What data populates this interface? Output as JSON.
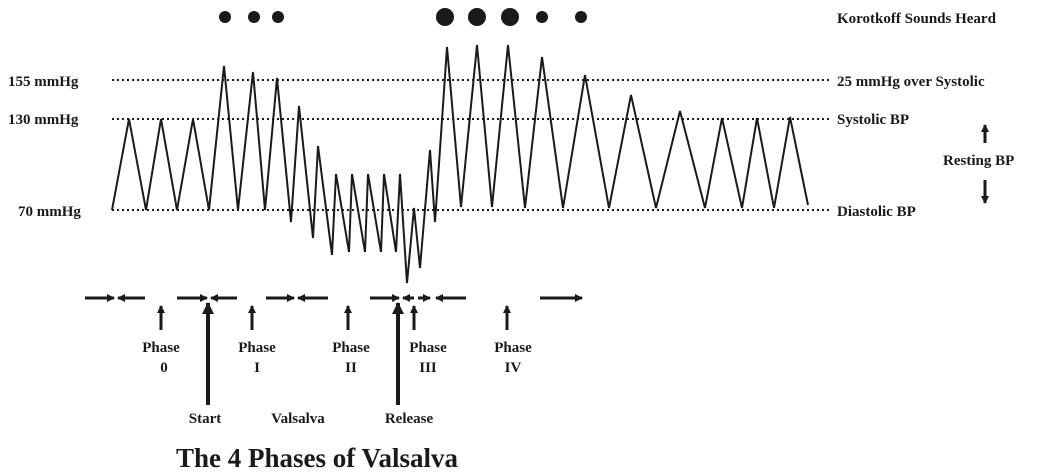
{
  "title": "The 4 Phases of Valsalva",
  "korotkoff_label": "Korotkoff Sounds Heard",
  "pressure_levels": {
    "high": {
      "left_label": "155 mmHg",
      "right_label": "25 mmHg over Systolic"
    },
    "systolic": {
      "left_label": "130 mmHg",
      "right_label": "Systolic BP"
    },
    "diastolic": {
      "left_label": "70 mmHg",
      "right_label": "Diastolic  BP"
    }
  },
  "resting_bp_label": "Resting BP",
  "phases": [
    {
      "label_top": "Phase",
      "label_bottom": "0"
    },
    {
      "label_top": "Phase",
      "label_bottom": "I"
    },
    {
      "label_top": "Phase",
      "label_bottom": "II"
    },
    {
      "label_top": "Phase",
      "label_bottom": "III"
    },
    {
      "label_top": "Phase",
      "label_bottom": "IV"
    }
  ],
  "events": {
    "start": "Start",
    "valsalva": "Valsalva",
    "release": "Release"
  },
  "colors": {
    "ink": "#1a1a1a",
    "background": "#ffffff"
  }
}
